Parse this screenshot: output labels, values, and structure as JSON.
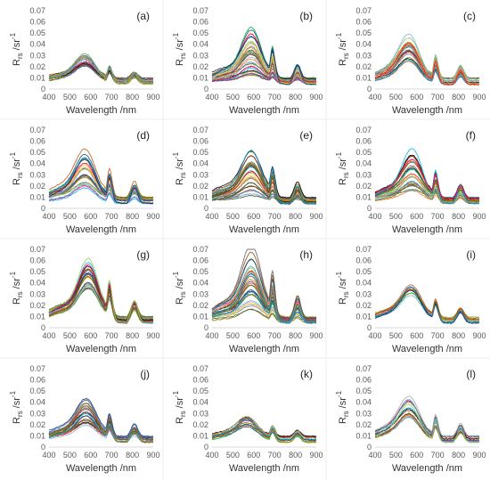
{
  "figure": {
    "panel_labels": [
      "(a)",
      "(b)",
      "(c)",
      "(d)",
      "(e)",
      "(f)",
      "(g)",
      "(h)",
      "(i)",
      "(j)",
      "(k)",
      "(l)"
    ],
    "xlabel": "Wavelength /nm",
    "ylabel": "R",
    "ylabel_subscript": "rs",
    "ylabel_suffix": " /sr",
    "ylabel_superscript": "-1"
  },
  "chart_data": [
    {
      "panel": "(a)",
      "type": "line",
      "xlabel": "Wavelength /nm",
      "ylabel": "Rrs /sr-1",
      "xlim": [
        400,
        900
      ],
      "ylim": [
        0,
        0.07
      ],
      "x_ticks": [
        400,
        500,
        600,
        700,
        800,
        900
      ],
      "y_ticks": [
        0,
        0.01,
        0.02,
        0.03,
        0.04,
        0.05,
        0.06,
        0.07
      ],
      "grid": false,
      "series_count": 18,
      "peak_reflectance_range": [
        0.02,
        0.03
      ],
      "green_peak_nm": 575
    },
    {
      "panel": "(b)",
      "type": "line",
      "xlabel": "Wavelength /nm",
      "ylabel": "Rrs /sr-1",
      "xlim": [
        400,
        900
      ],
      "ylim": [
        0,
        0.07
      ],
      "x_ticks": [
        400,
        500,
        600,
        700,
        800,
        900
      ],
      "y_ticks": [
        0,
        0.01,
        0.02,
        0.03,
        0.04,
        0.05,
        0.06,
        0.07
      ],
      "grid": false,
      "series_count": 30,
      "peak_reflectance_range": [
        0.012,
        0.05
      ],
      "green_peak_nm": 590
    },
    {
      "panel": "(c)",
      "type": "line",
      "xlabel": "Wavelength /nm",
      "ylabel": "Rrs /sr-1",
      "xlim": [
        400,
        900
      ],
      "ylim": [
        0,
        0.07
      ],
      "x_ticks": [
        400,
        500,
        600,
        700,
        800,
        900
      ],
      "y_ticks": [
        0,
        0.01,
        0.02,
        0.03,
        0.04,
        0.05,
        0.06,
        0.07
      ],
      "grid": false,
      "series_count": 24,
      "peak_reflectance_range": [
        0.025,
        0.044
      ],
      "green_peak_nm": 565
    },
    {
      "panel": "(d)",
      "type": "line",
      "xlabel": "Wavelength /nm",
      "ylabel": "Rrs /sr-1",
      "xlim": [
        400,
        900
      ],
      "ylim": [
        0,
        0.07
      ],
      "x_ticks": [
        400,
        500,
        600,
        700,
        800,
        900
      ],
      "y_ticks": [
        0,
        0.01,
        0.02,
        0.03,
        0.04,
        0.05,
        0.06,
        0.07
      ],
      "grid": false,
      "series_count": 26,
      "peak_reflectance_range": [
        0.018,
        0.049
      ],
      "green_peak_nm": 575
    },
    {
      "panel": "(e)",
      "type": "line",
      "xlabel": "Wavelength /nm",
      "ylabel": "Rrs /sr-1",
      "xlim": [
        400,
        900
      ],
      "ylim": [
        0,
        0.07
      ],
      "x_ticks": [
        400,
        500,
        600,
        700,
        800,
        900
      ],
      "y_ticks": [
        0,
        0.01,
        0.02,
        0.03,
        0.04,
        0.05,
        0.06,
        0.07
      ],
      "grid": false,
      "series_count": 30,
      "peak_reflectance_range": [
        0.012,
        0.049
      ],
      "green_peak_nm": 590
    },
    {
      "panel": "(f)",
      "type": "line",
      "xlabel": "Wavelength /nm",
      "ylabel": "Rrs /sr-1",
      "xlim": [
        400,
        900
      ],
      "ylim": [
        0,
        0.07
      ],
      "x_ticks": [
        400,
        500,
        600,
        700,
        800,
        900
      ],
      "y_ticks": [
        0,
        0.01,
        0.02,
        0.03,
        0.04,
        0.05,
        0.06,
        0.07
      ],
      "grid": false,
      "series_count": 28,
      "peak_reflectance_range": [
        0.015,
        0.048
      ],
      "green_peak_nm": 580
    },
    {
      "panel": "(g)",
      "type": "line",
      "xlabel": "Wavelength /nm",
      "ylabel": "Rrs /sr-1",
      "xlim": [
        400,
        900
      ],
      "ylim": [
        0,
        0.07
      ],
      "x_ticks": [
        400,
        500,
        600,
        700,
        800,
        900
      ],
      "y_ticks": [
        0,
        0.01,
        0.02,
        0.03,
        0.04,
        0.05,
        0.06,
        0.07
      ],
      "grid": false,
      "series_count": 26,
      "peak_reflectance_range": [
        0.033,
        0.054
      ],
      "green_peak_nm": 590
    },
    {
      "panel": "(h)",
      "type": "line",
      "xlabel": "Wavelength /nm",
      "ylabel": "Rrs /sr-1",
      "xlim": [
        400,
        900
      ],
      "ylim": [
        0,
        0.07
      ],
      "x_ticks": [
        400,
        500,
        600,
        700,
        800,
        900
      ],
      "y_ticks": [
        0,
        0.01,
        0.02,
        0.03,
        0.04,
        0.05,
        0.06,
        0.07
      ],
      "grid": false,
      "series_count": 32,
      "peak_reflectance_range": [
        0.015,
        0.064
      ],
      "green_peak_nm": 590
    },
    {
      "panel": "(i)",
      "type": "line",
      "xlabel": "Wavelength /nm",
      "ylabel": "Rrs /sr-1",
      "xlim": [
        400,
        900
      ],
      "ylim": [
        0,
        0.07
      ],
      "x_ticks": [
        400,
        500,
        600,
        700,
        800,
        900
      ],
      "y_ticks": [
        0,
        0.01,
        0.02,
        0.03,
        0.04,
        0.05,
        0.06,
        0.07
      ],
      "grid": false,
      "series_count": 12,
      "peak_reflectance_range": [
        0.03,
        0.036
      ],
      "green_peak_nm": 575
    },
    {
      "panel": "(j)",
      "type": "line",
      "xlabel": "Wavelength /nm",
      "ylabel": "Rrs /sr-1",
      "xlim": [
        400,
        900
      ],
      "ylim": [
        0,
        0.07
      ],
      "x_ticks": [
        400,
        500,
        600,
        700,
        800,
        900
      ],
      "y_ticks": [
        0,
        0.01,
        0.02,
        0.03,
        0.04,
        0.05,
        0.06,
        0.07
      ],
      "grid": false,
      "series_count": 26,
      "peak_reflectance_range": [
        0.02,
        0.04
      ],
      "green_peak_nm": 580
    },
    {
      "panel": "(k)",
      "type": "line",
      "xlabel": "Wavelength /nm",
      "ylabel": "Rrs /sr-1",
      "xlim": [
        400,
        900
      ],
      "ylim": [
        0,
        0.07
      ],
      "x_ticks": [
        400,
        500,
        600,
        700,
        800,
        900
      ],
      "y_ticks": [
        0,
        0.01,
        0.02,
        0.03,
        0.04,
        0.05,
        0.06,
        0.07
      ],
      "grid": false,
      "series_count": 14,
      "peak_reflectance_range": [
        0.018,
        0.026
      ],
      "green_peak_nm": 570
    },
    {
      "panel": "(l)",
      "type": "line",
      "xlabel": "Wavelength /nm",
      "ylabel": "Rrs /sr-1",
      "xlim": [
        400,
        900
      ],
      "ylim": [
        0,
        0.07
      ],
      "x_ticks": [
        400,
        500,
        600,
        700,
        800,
        900
      ],
      "y_ticks": [
        0,
        0.01,
        0.02,
        0.03,
        0.04,
        0.05,
        0.06,
        0.07
      ],
      "grid": false,
      "series_count": 14,
      "peak_reflectance_range": [
        0.024,
        0.041
      ],
      "green_peak_nm": 565
    }
  ]
}
